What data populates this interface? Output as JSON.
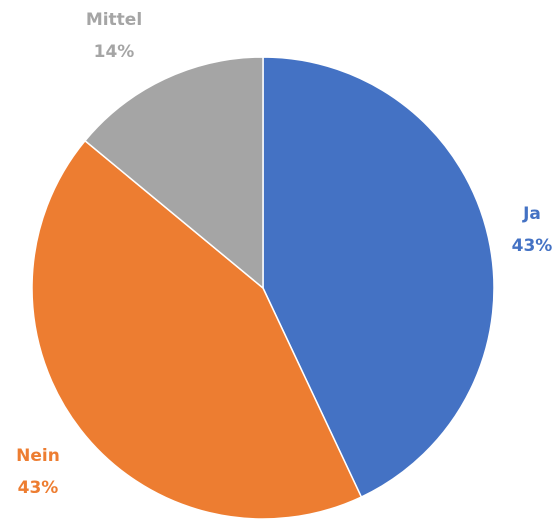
{
  "chart_data": {
    "type": "pie",
    "title": "",
    "slices": [
      {
        "name": "Ja",
        "value": 43,
        "label": "43%",
        "color": "#4472C4"
      },
      {
        "name": "Nein",
        "value": 43,
        "label": "43%",
        "color": "#ED7D31"
      },
      {
        "name": "Mittel",
        "value": 14,
        "label": "14%",
        "color": "#A5A5A5"
      }
    ],
    "start_angle_deg": 0,
    "direction": "clockwise",
    "legend": "none",
    "label_style": "name above percentage, colored to match slice"
  }
}
